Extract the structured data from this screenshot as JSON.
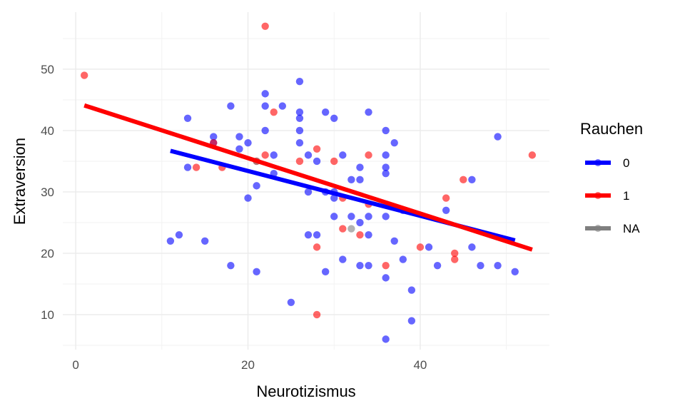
{
  "chart_data": {
    "type": "scatter",
    "title": "",
    "xlabel": "Neurotizismus",
    "ylabel": "Extraversion",
    "xlim": [
      -1.5,
      55
    ],
    "ylim": [
      4.3,
      59.3
    ],
    "x_ticks": [
      0,
      20,
      40
    ],
    "y_ticks": [
      10,
      20,
      30,
      40,
      50
    ],
    "grid": true,
    "legend": {
      "title": "Rauchen",
      "placement": "right",
      "entries": [
        {
          "label": "0",
          "color": "#0000FF"
        },
        {
          "label": "1",
          "color": "#FF0000"
        },
        {
          "label": "NA",
          "color": "#7F7F7F"
        }
      ]
    },
    "point_alpha": 0.6,
    "series": [
      {
        "name": "0",
        "color": "#0000FF",
        "points": [
          [
            11,
            22
          ],
          [
            12,
            23
          ],
          [
            13,
            42
          ],
          [
            13,
            34
          ],
          [
            15,
            22
          ],
          [
            16,
            39
          ],
          [
            16,
            38
          ],
          [
            18,
            44
          ],
          [
            18,
            18
          ],
          [
            19,
            39
          ],
          [
            19,
            37
          ],
          [
            20,
            38
          ],
          [
            20,
            29
          ],
          [
            21,
            31
          ],
          [
            21,
            17
          ],
          [
            22,
            46
          ],
          [
            22,
            44
          ],
          [
            22,
            40
          ],
          [
            23,
            36
          ],
          [
            23,
            33
          ],
          [
            24,
            44
          ],
          [
            25,
            12
          ],
          [
            26,
            48
          ],
          [
            26,
            43
          ],
          [
            26,
            42
          ],
          [
            26,
            40
          ],
          [
            26,
            38
          ],
          [
            27,
            36
          ],
          [
            27,
            30
          ],
          [
            27,
            23
          ],
          [
            28,
            35
          ],
          [
            28,
            23
          ],
          [
            29,
            43
          ],
          [
            29,
            30
          ],
          [
            29,
            17
          ],
          [
            30,
            42
          ],
          [
            30,
            30
          ],
          [
            30,
            29
          ],
          [
            30,
            26
          ],
          [
            31,
            36
          ],
          [
            31,
            19
          ],
          [
            32,
            32
          ],
          [
            32,
            26
          ],
          [
            33,
            34
          ],
          [
            33,
            32
          ],
          [
            33,
            25
          ],
          [
            33,
            18
          ],
          [
            34,
            43
          ],
          [
            34,
            26
          ],
          [
            34,
            23
          ],
          [
            34,
            18
          ],
          [
            36,
            40
          ],
          [
            36,
            36
          ],
          [
            36,
            34
          ],
          [
            36,
            33
          ],
          [
            36,
            26
          ],
          [
            36,
            16
          ],
          [
            36,
            6
          ],
          [
            37,
            38
          ],
          [
            37,
            22
          ],
          [
            38,
            27
          ],
          [
            38,
            19
          ],
          [
            39,
            14
          ],
          [
            39,
            9
          ],
          [
            41,
            21
          ],
          [
            42,
            18
          ],
          [
            43,
            27
          ],
          [
            46,
            32
          ],
          [
            46,
            21
          ],
          [
            47,
            18
          ],
          [
            49,
            39
          ],
          [
            49,
            18
          ],
          [
            51,
            17
          ]
        ]
      },
      {
        "name": "1",
        "color": "#FF0000",
        "points": [
          [
            1,
            49
          ],
          [
            14,
            34
          ],
          [
            16,
            38
          ],
          [
            17,
            34
          ],
          [
            21,
            35
          ],
          [
            22,
            57
          ],
          [
            22,
            36
          ],
          [
            23,
            43
          ],
          [
            26,
            35
          ],
          [
            28,
            37
          ],
          [
            28,
            21
          ],
          [
            28,
            10
          ],
          [
            30,
            35
          ],
          [
            31,
            29
          ],
          [
            31,
            24
          ],
          [
            33,
            23
          ],
          [
            34,
            36
          ],
          [
            34,
            28
          ],
          [
            36,
            18
          ],
          [
            40,
            21
          ],
          [
            43,
            29
          ],
          [
            44,
            20
          ],
          [
            44,
            19
          ],
          [
            45,
            32
          ],
          [
            53,
            36
          ]
        ]
      },
      {
        "name": "NA",
        "color": "#7F7F7F",
        "points": [
          [
            21,
            35
          ],
          [
            32,
            24
          ]
        ]
      }
    ],
    "regression_lines": [
      {
        "name": "0",
        "color": "#0000FF",
        "x": [
          11,
          51
        ],
        "y": [
          36.7,
          22.1
        ]
      },
      {
        "name": "1",
        "color": "#FF0000",
        "x": [
          1,
          53
        ],
        "y": [
          44.1,
          20.6
        ]
      }
    ]
  }
}
